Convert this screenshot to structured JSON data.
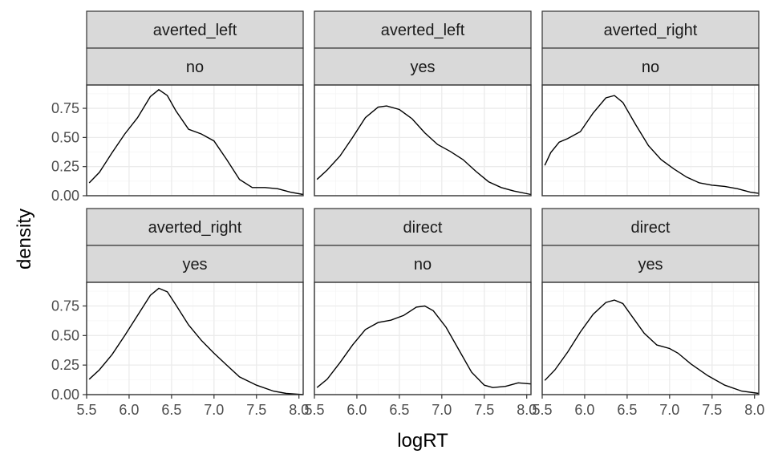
{
  "chart_data": {
    "type": "line",
    "xlabel": "logRT",
    "ylabel": "density",
    "xlim": [
      5.5,
      8.05
    ],
    "ylim": [
      0,
      0.95
    ],
    "x_ticks": [
      "5.5",
      "6.0",
      "6.5",
      "7.0",
      "7.5",
      "8.0"
    ],
    "x_tick_values": [
      5.5,
      6.0,
      6.5,
      7.0,
      7.5,
      8.0
    ],
    "y_ticks": [
      "0.00",
      "0.25",
      "0.50",
      "0.75"
    ],
    "y_tick_values": [
      0,
      0.25,
      0.5,
      0.75
    ],
    "grid": true,
    "facets": [
      {
        "strip_top": "averted_left",
        "strip_bottom": "no",
        "x": [
          5.53,
          5.65,
          5.8,
          5.95,
          6.1,
          6.25,
          6.35,
          6.45,
          6.55,
          6.7,
          6.85,
          7.0,
          7.15,
          7.3,
          7.45,
          7.6,
          7.75,
          7.9,
          8.05
        ],
        "y": [
          0.11,
          0.2,
          0.37,
          0.53,
          0.67,
          0.85,
          0.91,
          0.86,
          0.73,
          0.57,
          0.53,
          0.47,
          0.31,
          0.14,
          0.07,
          0.07,
          0.06,
          0.03,
          0.01
        ]
      },
      {
        "strip_top": "averted_left",
        "strip_bottom": "yes",
        "x": [
          5.53,
          5.65,
          5.8,
          5.95,
          6.1,
          6.25,
          6.35,
          6.5,
          6.65,
          6.8,
          6.95,
          7.1,
          7.25,
          7.4,
          7.55,
          7.7,
          7.85,
          8.05
        ],
        "y": [
          0.14,
          0.22,
          0.34,
          0.5,
          0.67,
          0.76,
          0.77,
          0.74,
          0.66,
          0.54,
          0.44,
          0.38,
          0.31,
          0.21,
          0.12,
          0.07,
          0.04,
          0.01
        ]
      },
      {
        "strip_top": "averted_right",
        "strip_bottom": "no",
        "x": [
          5.53,
          5.6,
          5.7,
          5.8,
          5.95,
          6.1,
          6.25,
          6.35,
          6.45,
          6.6,
          6.75,
          6.9,
          7.05,
          7.2,
          7.35,
          7.5,
          7.65,
          7.8,
          7.95,
          8.05
        ],
        "y": [
          0.26,
          0.37,
          0.46,
          0.49,
          0.55,
          0.71,
          0.84,
          0.86,
          0.8,
          0.61,
          0.43,
          0.31,
          0.23,
          0.16,
          0.11,
          0.09,
          0.08,
          0.06,
          0.03,
          0.02
        ]
      },
      {
        "strip_top": "averted_right",
        "strip_bottom": "yes",
        "x": [
          5.53,
          5.65,
          5.8,
          5.95,
          6.1,
          6.25,
          6.35,
          6.45,
          6.55,
          6.7,
          6.85,
          7.0,
          7.15,
          7.3,
          7.5,
          7.7,
          7.85,
          8.05
        ],
        "y": [
          0.13,
          0.21,
          0.34,
          0.5,
          0.67,
          0.84,
          0.9,
          0.87,
          0.76,
          0.59,
          0.46,
          0.35,
          0.25,
          0.15,
          0.08,
          0.03,
          0.01,
          0.0
        ]
      },
      {
        "strip_top": "direct",
        "strip_bottom": "no",
        "x": [
          5.53,
          5.65,
          5.8,
          5.95,
          6.1,
          6.25,
          6.4,
          6.55,
          6.7,
          6.8,
          6.9,
          7.05,
          7.2,
          7.35,
          7.5,
          7.6,
          7.75,
          7.9,
          8.05
        ],
        "y": [
          0.06,
          0.13,
          0.27,
          0.42,
          0.55,
          0.61,
          0.63,
          0.67,
          0.74,
          0.75,
          0.71,
          0.57,
          0.38,
          0.19,
          0.08,
          0.06,
          0.07,
          0.1,
          0.09
        ]
      },
      {
        "strip_top": "direct",
        "strip_bottom": "yes",
        "x": [
          5.53,
          5.65,
          5.8,
          5.95,
          6.1,
          6.25,
          6.35,
          6.45,
          6.55,
          6.7,
          6.85,
          7.0,
          7.1,
          7.25,
          7.45,
          7.65,
          7.85,
          8.05
        ],
        "y": [
          0.12,
          0.21,
          0.36,
          0.53,
          0.68,
          0.78,
          0.8,
          0.77,
          0.67,
          0.52,
          0.42,
          0.39,
          0.35,
          0.26,
          0.16,
          0.08,
          0.03,
          0.01
        ]
      }
    ]
  }
}
